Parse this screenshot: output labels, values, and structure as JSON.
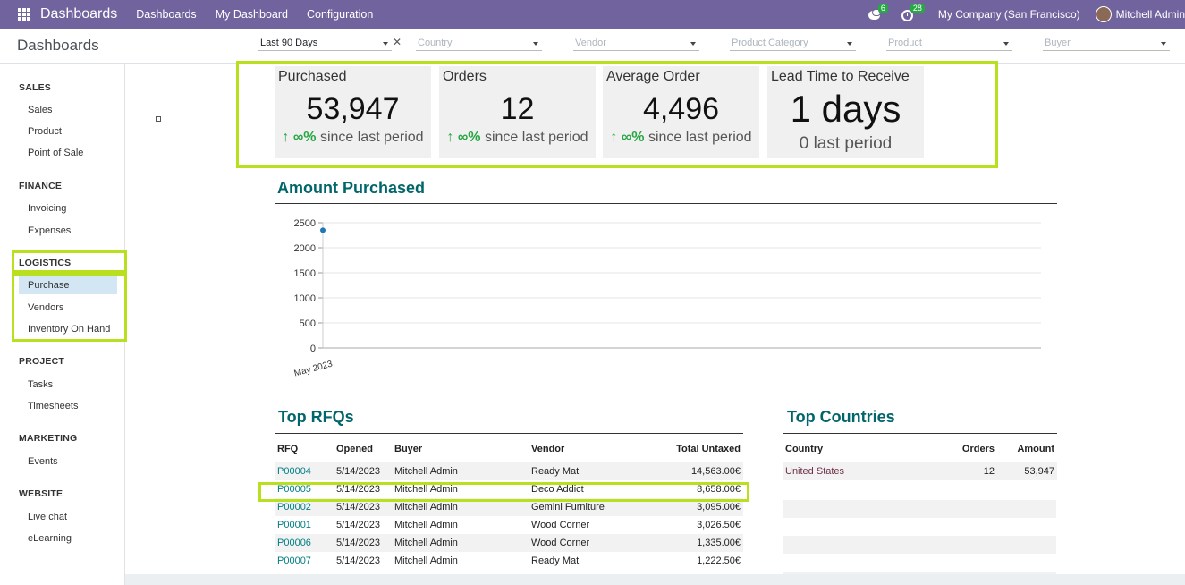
{
  "navbar": {
    "brand": "Dashboards",
    "items": [
      "Dashboards",
      "My Dashboard",
      "Configuration"
    ],
    "chat_count": "6",
    "activity_count": "28",
    "company": "My Company (San Francisco)",
    "user": "Mitchell Admin"
  },
  "control_panel": {
    "title": "Dashboards",
    "filters": [
      {
        "label": "Last 90 Days",
        "placeholder": false
      },
      {
        "label": "Country",
        "placeholder": true
      },
      {
        "label": "Vendor",
        "placeholder": true
      },
      {
        "label": "Product Category",
        "placeholder": true
      },
      {
        "label": "Product",
        "placeholder": true
      },
      {
        "label": "Buyer",
        "placeholder": true
      }
    ]
  },
  "sidebar": {
    "sections": [
      {
        "title": "SALES",
        "items": [
          "Sales",
          "Product",
          "Point of Sale"
        ]
      },
      {
        "title": "FINANCE",
        "items": [
          "Invoicing",
          "Expenses"
        ]
      },
      {
        "title": "LOGISTICS",
        "items": [
          "Purchase",
          "Vendors",
          "Inventory On Hand"
        ]
      },
      {
        "title": "PROJECT",
        "items": [
          "Tasks",
          "Timesheets"
        ]
      },
      {
        "title": "MARKETING",
        "items": [
          "Events"
        ]
      },
      {
        "title": "WEBSITE",
        "items": [
          "Live chat",
          "eLearning"
        ]
      }
    ],
    "active_item": "Purchase"
  },
  "kpis": [
    {
      "title": "Purchased",
      "value": "53,947",
      "trend": "∞%",
      "trend_suffix": "since last period"
    },
    {
      "title": "Orders",
      "value": "12",
      "trend": "∞%",
      "trend_suffix": "since last period"
    },
    {
      "title": "Average Order",
      "value": "4,496",
      "trend": "∞%",
      "trend_suffix": "since last period"
    },
    {
      "title": "Lead Time to Receive",
      "value": "1 days",
      "previous": "0 last period"
    }
  ],
  "amount_chart": {
    "title": "Amount Purchased",
    "chart_data": {
      "type": "line",
      "x": [
        "May 2023"
      ],
      "series": [
        {
          "values": [
            2350
          ]
        }
      ],
      "yticks": [
        0,
        500,
        1000,
        1500,
        2000,
        2500
      ],
      "ylim": [
        0,
        2500
      ],
      "grid": true,
      "color": "#1f77b4"
    }
  },
  "top_rfqs": {
    "title": "Top RFQs",
    "columns": [
      "RFQ",
      "Opened",
      "Buyer",
      "Vendor",
      "Total Untaxed"
    ],
    "rows": [
      [
        "P00004",
        "5/14/2023",
        "Mitchell Admin",
        "Ready Mat",
        "14,563.00€"
      ],
      [
        "P00005",
        "5/14/2023",
        "Mitchell Admin",
        "Deco Addict",
        "8,658.00€"
      ],
      [
        "P00002",
        "5/14/2023",
        "Mitchell Admin",
        "Gemini Furniture",
        "3,095.00€"
      ],
      [
        "P00001",
        "5/14/2023",
        "Mitchell Admin",
        "Wood Corner",
        "3,026.50€"
      ],
      [
        "P00006",
        "5/14/2023",
        "Mitchell Admin",
        "Wood Corner",
        "1,335.00€"
      ],
      [
        "P00007",
        "5/14/2023",
        "Mitchell Admin",
        "Ready Mat",
        "1,222.50€"
      ]
    ]
  },
  "top_countries": {
    "title": "Top Countries",
    "columns": [
      "Country",
      "Orders",
      "Amount"
    ],
    "rows": [
      [
        "United States",
        "12",
        "53,947"
      ]
    ]
  },
  "colors": {
    "navbar": "#71639e",
    "accent_title": "#01666b",
    "highlight": "#b9e01e",
    "trend_up": "#28a745"
  }
}
